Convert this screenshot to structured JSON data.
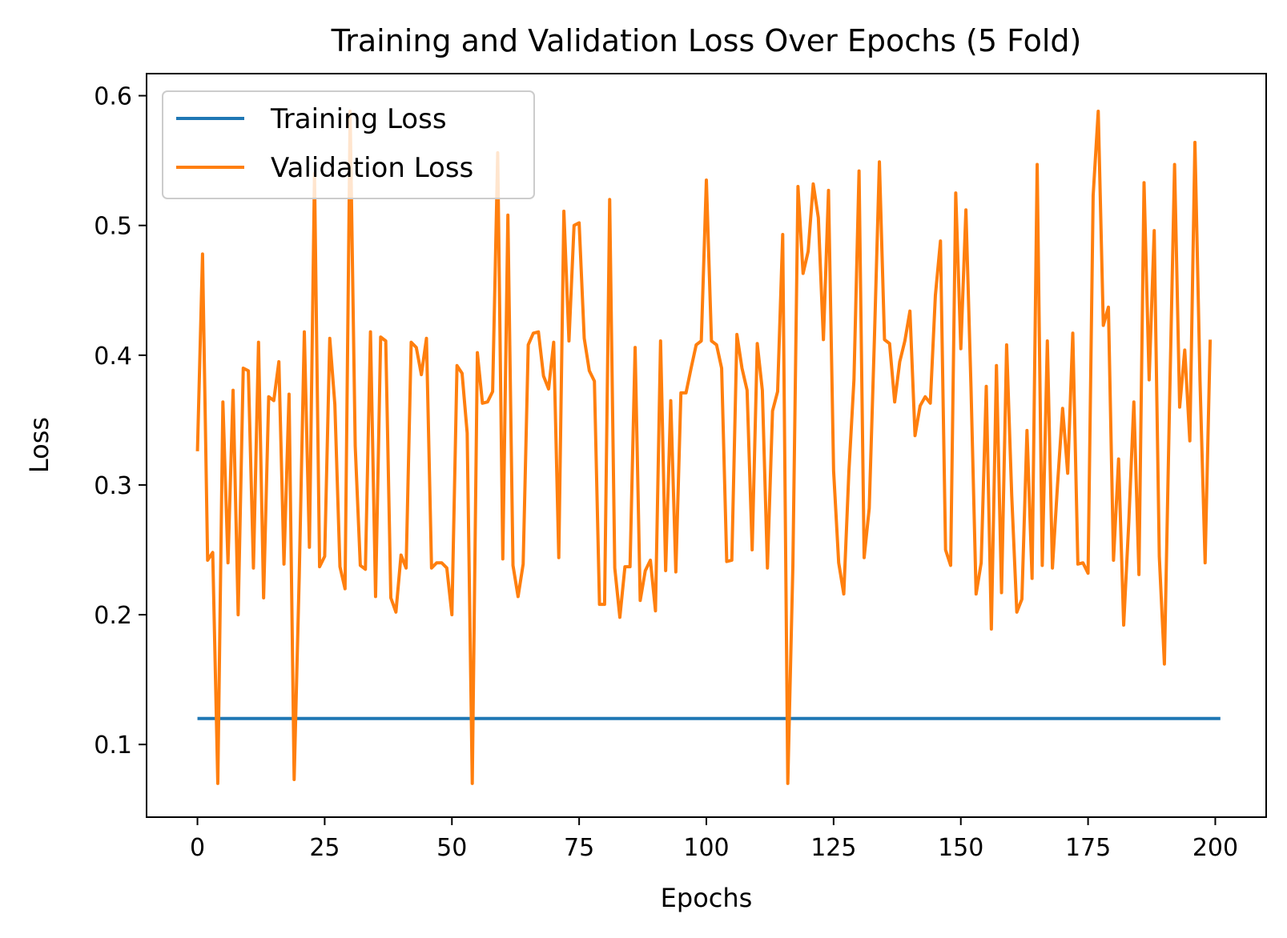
{
  "chart_data": {
    "type": "line",
    "title": "Training and Validation Loss Over Epochs (5 Fold)",
    "xlabel": "Epochs",
    "ylabel": "Loss",
    "xlim": [
      -10,
      210
    ],
    "ylim": [
      0.044,
      0.617
    ],
    "xticks": [
      0,
      25,
      50,
      75,
      100,
      125,
      150,
      175,
      200
    ],
    "yticks": [
      0.1,
      0.2,
      0.3,
      0.4,
      0.5,
      0.6
    ],
    "xtick_labels": [
      "0",
      "25",
      "50",
      "75",
      "100",
      "125",
      "150",
      "175",
      "200"
    ],
    "ytick_labels": [
      "0.1",
      "0.2",
      "0.3",
      "0.4",
      "0.5",
      "0.6"
    ],
    "grid": false,
    "legend_position": "upper-left",
    "series": [
      {
        "name": "Training Loss",
        "color": "#1f77b4",
        "x_start": 0,
        "values": [
          0.12,
          0.12,
          0.12,
          0.12,
          0.12,
          0.12,
          0.12,
          0.12,
          0.12,
          0.12,
          0.12,
          0.12,
          0.12,
          0.12,
          0.12,
          0.12,
          0.12,
          0.12,
          0.12,
          0.12,
          0.12,
          0.12,
          0.12,
          0.12,
          0.12,
          0.12,
          0.12,
          0.12,
          0.12,
          0.12,
          0.12,
          0.12,
          0.12,
          0.12,
          0.12,
          0.12,
          0.12,
          0.12,
          0.12,
          0.12,
          0.12,
          0.12,
          0.12,
          0.12,
          0.12,
          0.12,
          0.12,
          0.12,
          0.12,
          0.12,
          0.12,
          0.12,
          0.12,
          0.12,
          0.12,
          0.12,
          0.12,
          0.12,
          0.12,
          0.12,
          0.12,
          0.12,
          0.12,
          0.12,
          0.12,
          0.12,
          0.12,
          0.12,
          0.12,
          0.12,
          0.12,
          0.12,
          0.12,
          0.12,
          0.12,
          0.12,
          0.12,
          0.12,
          0.12,
          0.12,
          0.12,
          0.12,
          0.12,
          0.12,
          0.12,
          0.12,
          0.12,
          0.12,
          0.12,
          0.12,
          0.12,
          0.12,
          0.12,
          0.12,
          0.12,
          0.12,
          0.12,
          0.12,
          0.12,
          0.12,
          0.12,
          0.12,
          0.12,
          0.12,
          0.12,
          0.12,
          0.12,
          0.12,
          0.12,
          0.12,
          0.12,
          0.12,
          0.12,
          0.12,
          0.12,
          0.12,
          0.12,
          0.12,
          0.12,
          0.12,
          0.12,
          0.12,
          0.12,
          0.12,
          0.12,
          0.12,
          0.12,
          0.12,
          0.12,
          0.12,
          0.12,
          0.12,
          0.12,
          0.12,
          0.12,
          0.12,
          0.12,
          0.12,
          0.12,
          0.12,
          0.12,
          0.12,
          0.12,
          0.12,
          0.12,
          0.12,
          0.12,
          0.12,
          0.12,
          0.12,
          0.12,
          0.12,
          0.12,
          0.12,
          0.12,
          0.12,
          0.12,
          0.12,
          0.12,
          0.12,
          0.12,
          0.12,
          0.12,
          0.12,
          0.12,
          0.12,
          0.12,
          0.12,
          0.12,
          0.12,
          0.12,
          0.12,
          0.12,
          0.12,
          0.12,
          0.12,
          0.12,
          0.12,
          0.12,
          0.12,
          0.12,
          0.12,
          0.12,
          0.12,
          0.12,
          0.12,
          0.12,
          0.12,
          0.12,
          0.12,
          0.12,
          0.12,
          0.12,
          0.12,
          0.12,
          0.12,
          0.12,
          0.12,
          0.12,
          0.12,
          0.12,
          0.12
        ]
      },
      {
        "name": "Validation Loss",
        "color": "#ff7f0e",
        "x_start": 0,
        "values": [
          0.326,
          0.478,
          0.242,
          0.248,
          0.07,
          0.364,
          0.24,
          0.373,
          0.2,
          0.39,
          0.388,
          0.236,
          0.41,
          0.213,
          0.368,
          0.365,
          0.395,
          0.239,
          0.37,
          0.073,
          0.23,
          0.418,
          0.252,
          0.54,
          0.237,
          0.245,
          0.413,
          0.362,
          0.237,
          0.22,
          0.588,
          0.33,
          0.238,
          0.235,
          0.418,
          0.214,
          0.414,
          0.411,
          0.213,
          0.202,
          0.246,
          0.236,
          0.41,
          0.406,
          0.385,
          0.413,
          0.236,
          0.24,
          0.24,
          0.236,
          0.2,
          0.392,
          0.386,
          0.34,
          0.07,
          0.402,
          0.363,
          0.364,
          0.372,
          0.556,
          0.243,
          0.508,
          0.238,
          0.214,
          0.239,
          0.408,
          0.417,
          0.418,
          0.384,
          0.374,
          0.41,
          0.244,
          0.511,
          0.411,
          0.5,
          0.502,
          0.413,
          0.388,
          0.38,
          0.208,
          0.208,
          0.52,
          0.236,
          0.198,
          0.237,
          0.237,
          0.406,
          0.211,
          0.234,
          0.242,
          0.203,
          0.411,
          0.234,
          0.365,
          0.233,
          0.371,
          0.371,
          0.39,
          0.408,
          0.411,
          0.535,
          0.411,
          0.408,
          0.39,
          0.241,
          0.242,
          0.416,
          0.39,
          0.373,
          0.25,
          0.409,
          0.373,
          0.236,
          0.357,
          0.372,
          0.493,
          0.07,
          0.238,
          0.53,
          0.463,
          0.48,
          0.532,
          0.506,
          0.412,
          0.527,
          0.311,
          0.24,
          0.216,
          0.31,
          0.381,
          0.542,
          0.244,
          0.282,
          0.41,
          0.549,
          0.412,
          0.409,
          0.364,
          0.395,
          0.411,
          0.434,
          0.338,
          0.361,
          0.368,
          0.363,
          0.446,
          0.488,
          0.25,
          0.238,
          0.525,
          0.405,
          0.512,
          0.375,
          0.216,
          0.24,
          0.376,
          0.189,
          0.392,
          0.217,
          0.408,
          0.292,
          0.202,
          0.212,
          0.342,
          0.228,
          0.547,
          0.238,
          0.411,
          0.236,
          0.3,
          0.359,
          0.309,
          0.417,
          0.239,
          0.24,
          0.232,
          0.523,
          0.588,
          0.423,
          0.437,
          0.242,
          0.32,
          0.192,
          0.271,
          0.364,
          0.231,
          0.533,
          0.381,
          0.496,
          0.245,
          0.162,
          0.36,
          0.547,
          0.36,
          0.404,
          0.334,
          0.564,
          0.38,
          0.24,
          0.412
        ]
      }
    ]
  }
}
